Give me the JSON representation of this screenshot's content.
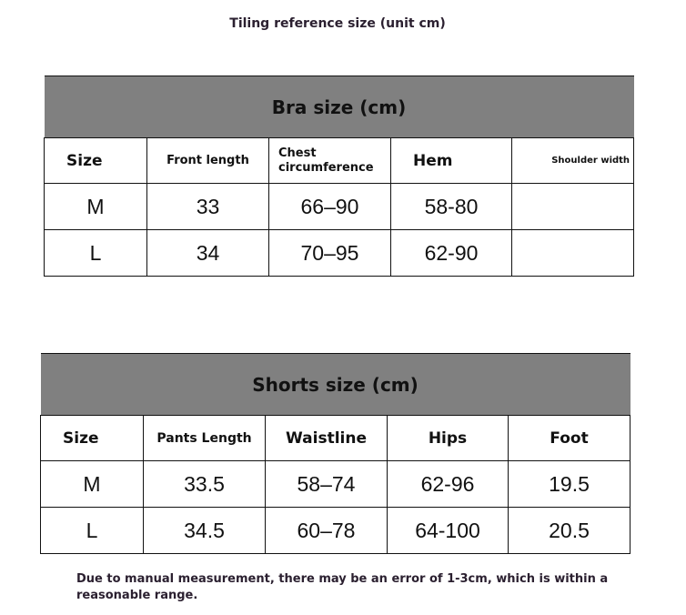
{
  "title": "Tiling reference size (unit cm)",
  "bra": {
    "caption": "Bra size (cm)",
    "headers": [
      "Size",
      "Front length",
      "Chest circumference",
      "Hem",
      "Shoulder width"
    ],
    "rows": [
      [
        "M",
        "33",
        "66–90",
        "58-80",
        ""
      ],
      [
        "L",
        "34",
        "70–95",
        "62-90",
        ""
      ]
    ]
  },
  "shorts": {
    "caption": "Shorts size (cm)",
    "headers": [
      "Size",
      "Pants Length",
      "Waistline",
      "Hips",
      "Foot"
    ],
    "rows": [
      [
        "M",
        "33.5",
        "58–74",
        "62-96",
        "19.5"
      ],
      [
        "L",
        "34.5",
        "60–78",
        "64-100",
        "20.5"
      ]
    ]
  },
  "note": "Due to manual measurement, there may be an error of 1-3cm, which is within a reasonable range.",
  "colors": {
    "header_band": "#808080",
    "text": "#2b2030"
  }
}
